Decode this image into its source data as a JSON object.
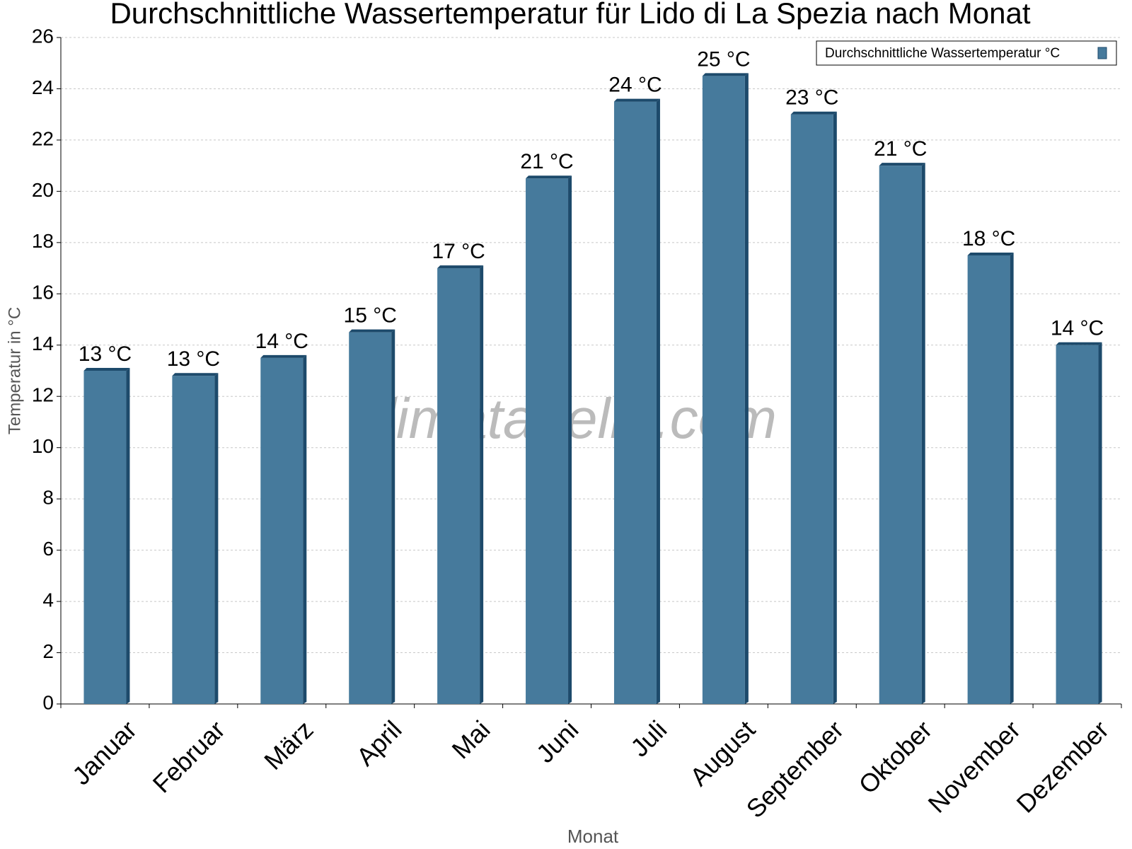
{
  "chart_data": {
    "type": "bar",
    "title": "Durchschnittliche Wassertemperatur für Lido di La Spezia nach Monat",
    "x_label": "Monat",
    "y_label": "Temperatur in °C",
    "watermark": "klimatabelle.com",
    "categories": [
      "Januar",
      "Februar",
      "März",
      "April",
      "Mai",
      "Juni",
      "Juli",
      "August",
      "September",
      "Oktober",
      "November",
      "Dezember"
    ],
    "series": [
      {
        "name": "Durchschnittliche Wassertemperatur °C",
        "color": "#467a9c",
        "values": [
          13.0,
          12.8,
          13.5,
          14.5,
          17.0,
          20.5,
          23.5,
          24.5,
          23.0,
          21.0,
          17.5,
          14.0
        ],
        "value_labels": [
          "13 °C",
          "13 °C",
          "14 °C",
          "15 °C",
          "17 °C",
          "21 °C",
          "24 °C",
          "25 °C",
          "23 °C",
          "21 °C",
          "18 °C",
          "14 °C"
        ]
      }
    ],
    "ylim": [
      0,
      26
    ],
    "yticks": [
      0,
      2,
      4,
      6,
      8,
      10,
      12,
      14,
      16,
      18,
      20,
      22,
      24,
      26
    ],
    "grid": true,
    "legend": "top-right"
  }
}
